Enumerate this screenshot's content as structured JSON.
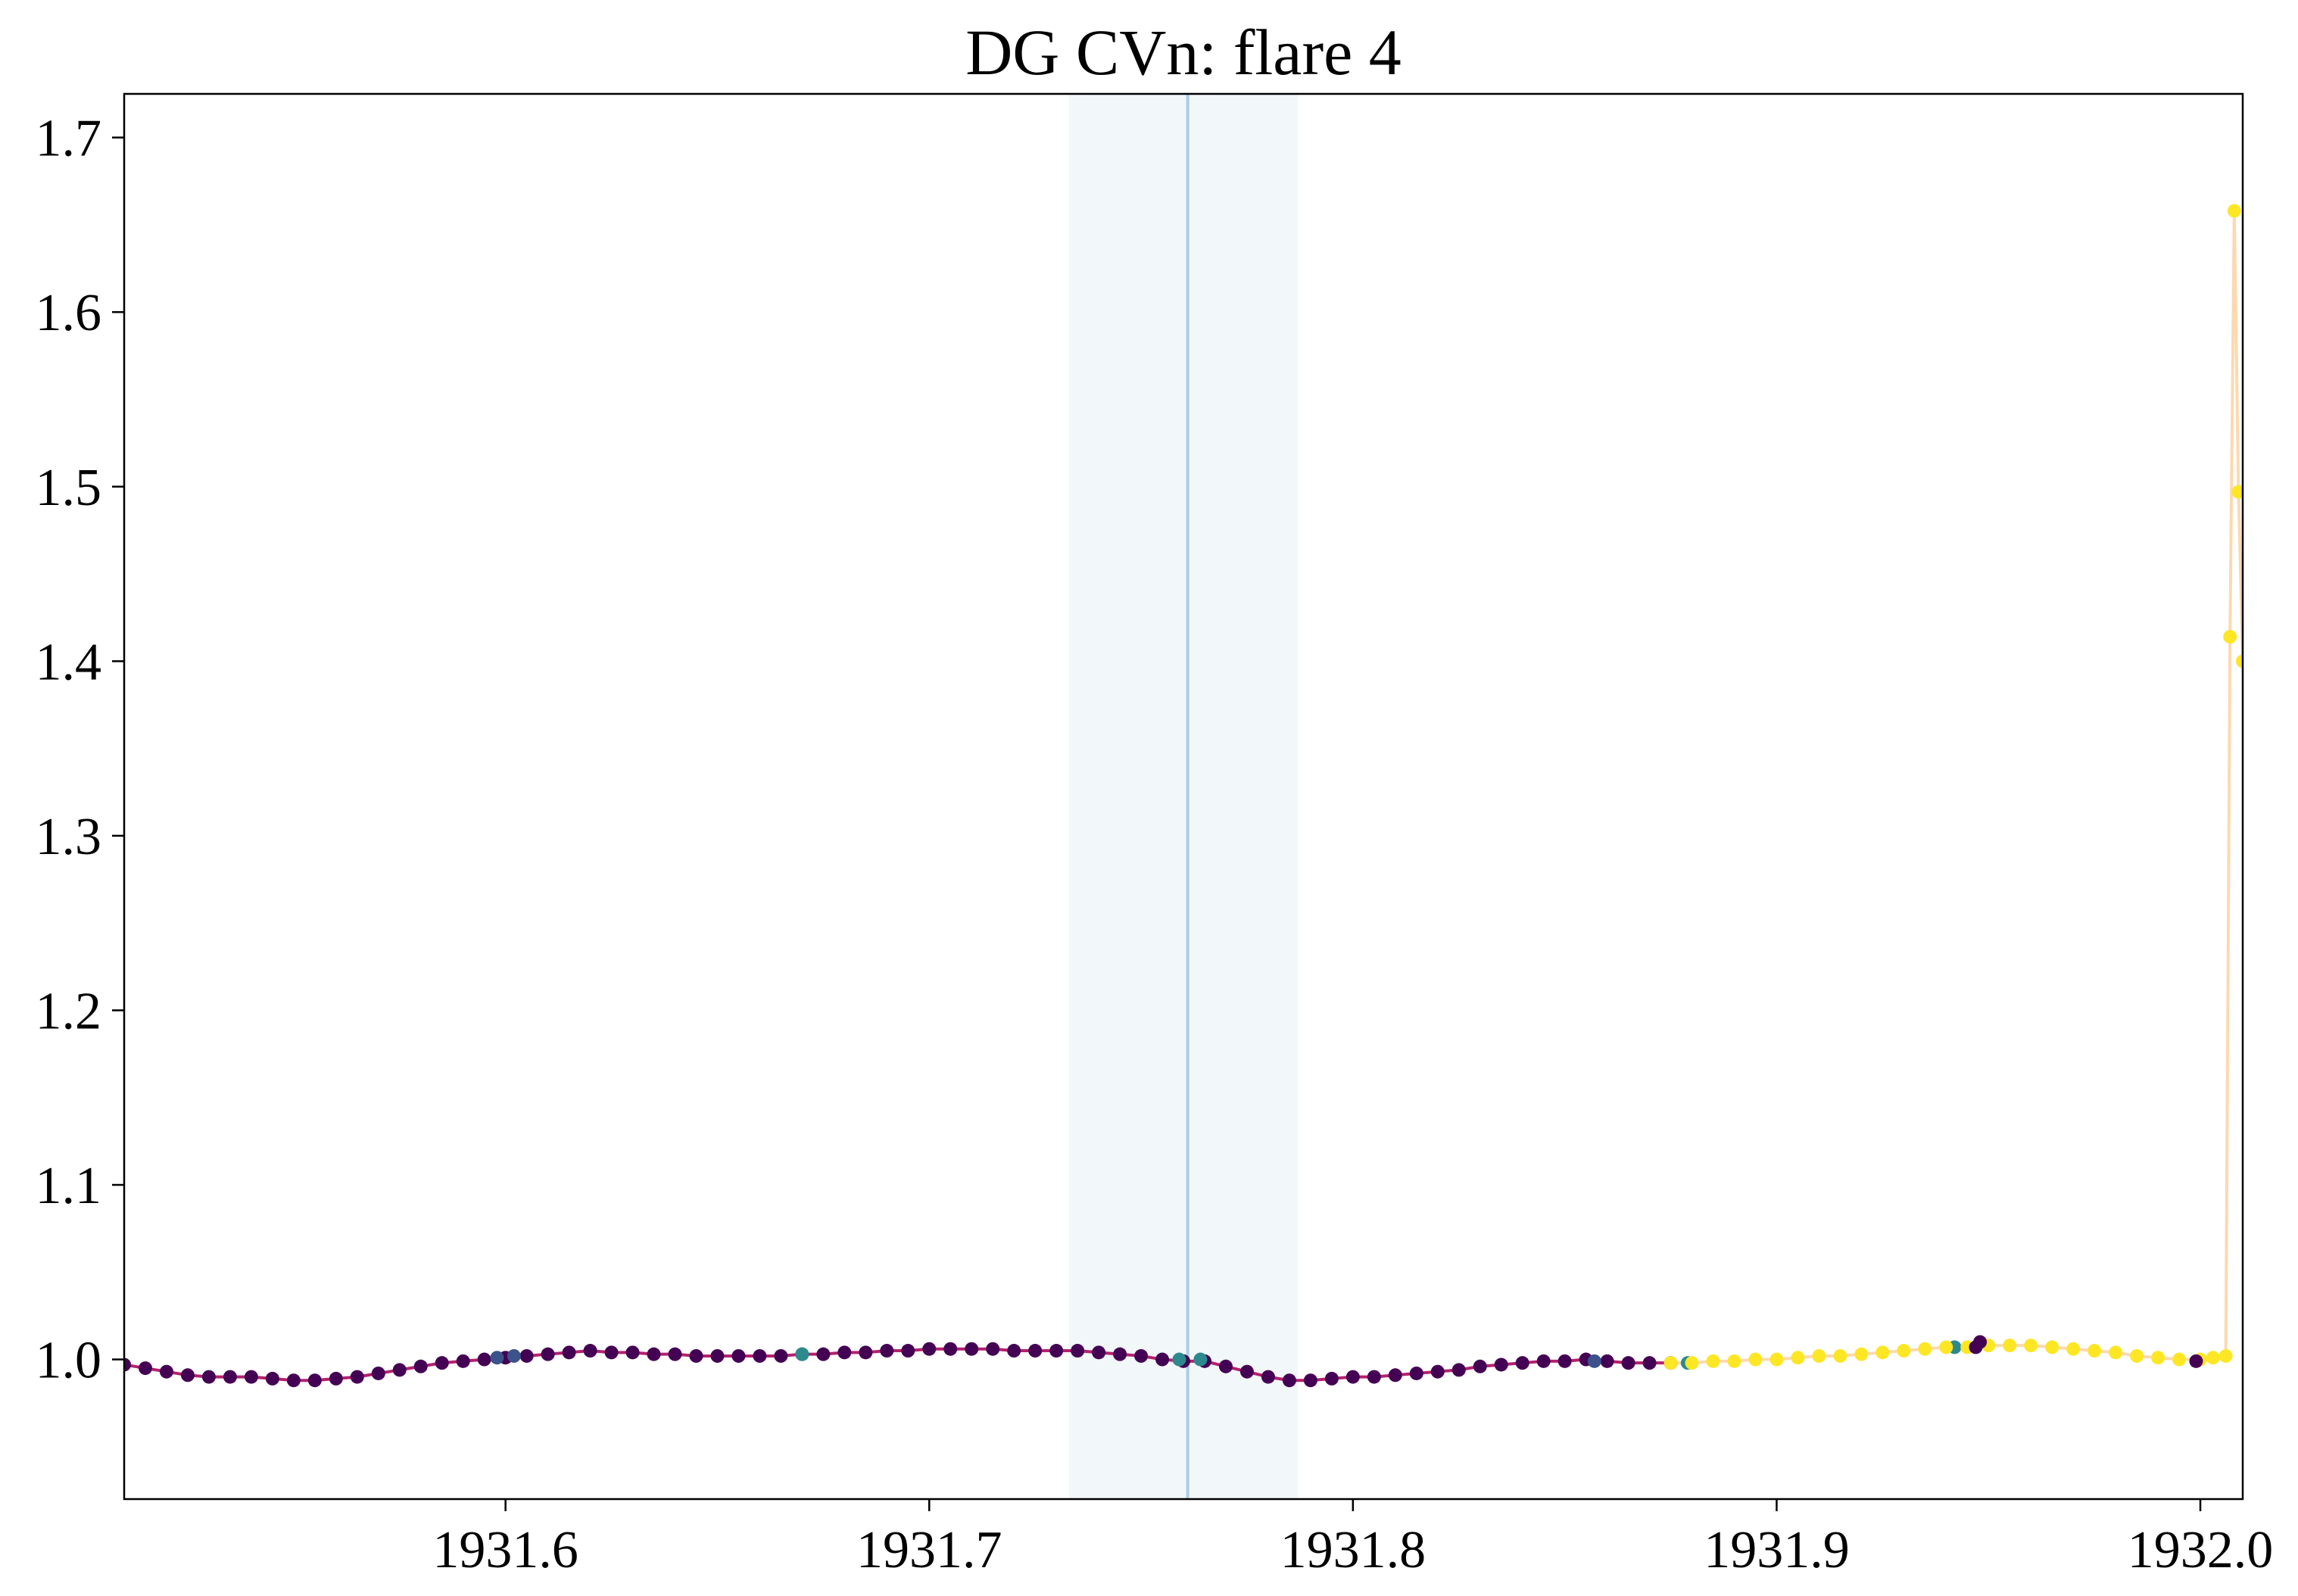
{
  "chart_data": {
    "type": "scatter",
    "title": "DG CVn: flare 4",
    "xlabel": "",
    "ylabel": "",
    "xlim": [
      1931.51,
      1932.01
    ],
    "ylim": [
      0.92,
      1.725
    ],
    "xticks": [
      1931.6,
      1931.7,
      1931.8,
      1931.9,
      1932.0
    ],
    "xtick_labels": [
      "1931.6",
      "1931.7",
      "1931.8",
      "1931.9",
      "1932.0"
    ],
    "yticks": [
      1.0,
      1.1,
      1.2,
      1.3,
      1.4,
      1.5,
      1.6,
      1.7
    ],
    "ytick_labels": [
      "1.0",
      "1.1",
      "1.2",
      "1.3",
      "1.4",
      "1.5",
      "1.6",
      "1.7"
    ],
    "grid": false,
    "shaded_region": {
      "x_start": 1931.733,
      "x_end": 1931.787,
      "color": "#f2f7fa"
    },
    "vertical_line": {
      "x": 1931.761,
      "color": "#a9cdee"
    },
    "colors": {
      "baseline": "#440154",
      "baseline_line": "#b5206e",
      "mid": "#2c8a8e",
      "blue": "#3b528b",
      "yellow": "#fde725",
      "flare_line": "#fcd9b0"
    },
    "series": [
      {
        "color": "#440154",
        "points": [
          [
            1931.51,
            0.997
          ],
          [
            1931.515,
            0.995
          ],
          [
            1931.52,
            0.993
          ],
          [
            1931.525,
            0.991
          ],
          [
            1931.53,
            0.99
          ],
          [
            1931.535,
            0.99
          ],
          [
            1931.54,
            0.99
          ],
          [
            1931.545,
            0.989
          ],
          [
            1931.55,
            0.988
          ],
          [
            1931.555,
            0.988
          ],
          [
            1931.56,
            0.989
          ],
          [
            1931.565,
            0.99
          ],
          [
            1931.57,
            0.992
          ],
          [
            1931.575,
            0.994
          ],
          [
            1931.58,
            0.996
          ],
          [
            1931.585,
            0.998
          ],
          [
            1931.59,
            0.999
          ],
          [
            1931.595,
            1.0
          ],
          [
            1931.6,
            1.001
          ],
          [
            1931.605,
            1.002
          ],
          [
            1931.61,
            1.003
          ],
          [
            1931.615,
            1.004
          ],
          [
            1931.62,
            1.005
          ],
          [
            1931.625,
            1.004
          ],
          [
            1931.63,
            1.004
          ],
          [
            1931.635,
            1.003
          ],
          [
            1931.64,
            1.003
          ],
          [
            1931.645,
            1.002
          ],
          [
            1931.65,
            1.002
          ],
          [
            1931.655,
            1.002
          ],
          [
            1931.66,
            1.002
          ],
          [
            1931.665,
            1.002
          ],
          [
            1931.67,
            1.003
          ],
          [
            1931.675,
            1.003
          ],
          [
            1931.68,
            1.004
          ],
          [
            1931.685,
            1.004
          ],
          [
            1931.69,
            1.005
          ],
          [
            1931.695,
            1.005
          ],
          [
            1931.7,
            1.006
          ],
          [
            1931.705,
            1.006
          ],
          [
            1931.71,
            1.006
          ],
          [
            1931.715,
            1.006
          ],
          [
            1931.72,
            1.005
          ],
          [
            1931.725,
            1.005
          ],
          [
            1931.73,
            1.005
          ],
          [
            1931.735,
            1.005
          ],
          [
            1931.74,
            1.004
          ],
          [
            1931.745,
            1.003
          ],
          [
            1931.75,
            1.002
          ],
          [
            1931.755,
            1.0
          ],
          [
            1931.76,
            0.999
          ],
          [
            1931.765,
            0.999
          ],
          [
            1931.77,
            0.996
          ],
          [
            1931.775,
            0.993
          ],
          [
            1931.78,
            0.99
          ],
          [
            1931.785,
            0.988
          ],
          [
            1931.79,
            0.988
          ],
          [
            1931.795,
            0.989
          ],
          [
            1931.8,
            0.99
          ],
          [
            1931.805,
            0.99
          ],
          [
            1931.81,
            0.991
          ],
          [
            1931.815,
            0.992
          ],
          [
            1931.82,
            0.993
          ],
          [
            1931.825,
            0.994
          ],
          [
            1931.83,
            0.996
          ],
          [
            1931.835,
            0.997
          ],
          [
            1931.84,
            0.998
          ],
          [
            1931.845,
            0.999
          ],
          [
            1931.85,
            0.999
          ],
          [
            1931.855,
            1.0
          ],
          [
            1931.86,
            0.999
          ],
          [
            1931.865,
            0.998
          ],
          [
            1931.87,
            0.998
          ],
          [
            1931.875,
            0.998
          ]
        ]
      },
      {
        "color": "#3b528b",
        "points": [
          [
            1931.598,
            1.001
          ],
          [
            1931.602,
            1.002
          ],
          [
            1931.857,
            0.999
          ]
        ]
      },
      {
        "color": "#2c8a8e",
        "points": [
          [
            1931.67,
            1.003
          ],
          [
            1931.759,
            1.0
          ],
          [
            1931.764,
            1.0
          ],
          [
            1931.879,
            0.998
          ],
          [
            1931.942,
            1.007
          ]
        ]
      },
      {
        "color": "#fde725",
        "points": [
          [
            1931.875,
            0.998
          ],
          [
            1931.88,
            0.998
          ],
          [
            1931.885,
            0.999
          ],
          [
            1931.89,
            0.999
          ],
          [
            1931.895,
            1.0
          ],
          [
            1931.9,
            1.0
          ],
          [
            1931.905,
            1.001
          ],
          [
            1931.91,
            1.002
          ],
          [
            1931.915,
            1.002
          ],
          [
            1931.92,
            1.003
          ],
          [
            1931.925,
            1.004
          ],
          [
            1931.93,
            1.005
          ],
          [
            1931.935,
            1.006
          ],
          [
            1931.94,
            1.007
          ],
          [
            1931.945,
            1.007
          ],
          [
            1931.95,
            1.008
          ],
          [
            1931.955,
            1.008
          ],
          [
            1931.96,
            1.008
          ],
          [
            1931.965,
            1.007
          ],
          [
            1931.97,
            1.006
          ],
          [
            1931.975,
            1.005
          ],
          [
            1931.98,
            1.004
          ],
          [
            1931.985,
            1.002
          ],
          [
            1931.99,
            1.001
          ],
          [
            1931.995,
            1.0
          ],
          [
            1932.0,
            1.0
          ],
          [
            1932.003,
            1.001
          ],
          [
            1932.006,
            1.002
          ],
          [
            1932.007,
            1.414
          ],
          [
            1932.008,
            1.658
          ],
          [
            1932.009,
            1.497
          ],
          [
            1932.01,
            1.4
          ]
        ]
      },
      {
        "color": "#440154",
        "points": [
          [
            1931.947,
            1.007
          ],
          [
            1931.948,
            1.01
          ],
          [
            1931.999,
            0.999
          ]
        ]
      }
    ]
  }
}
